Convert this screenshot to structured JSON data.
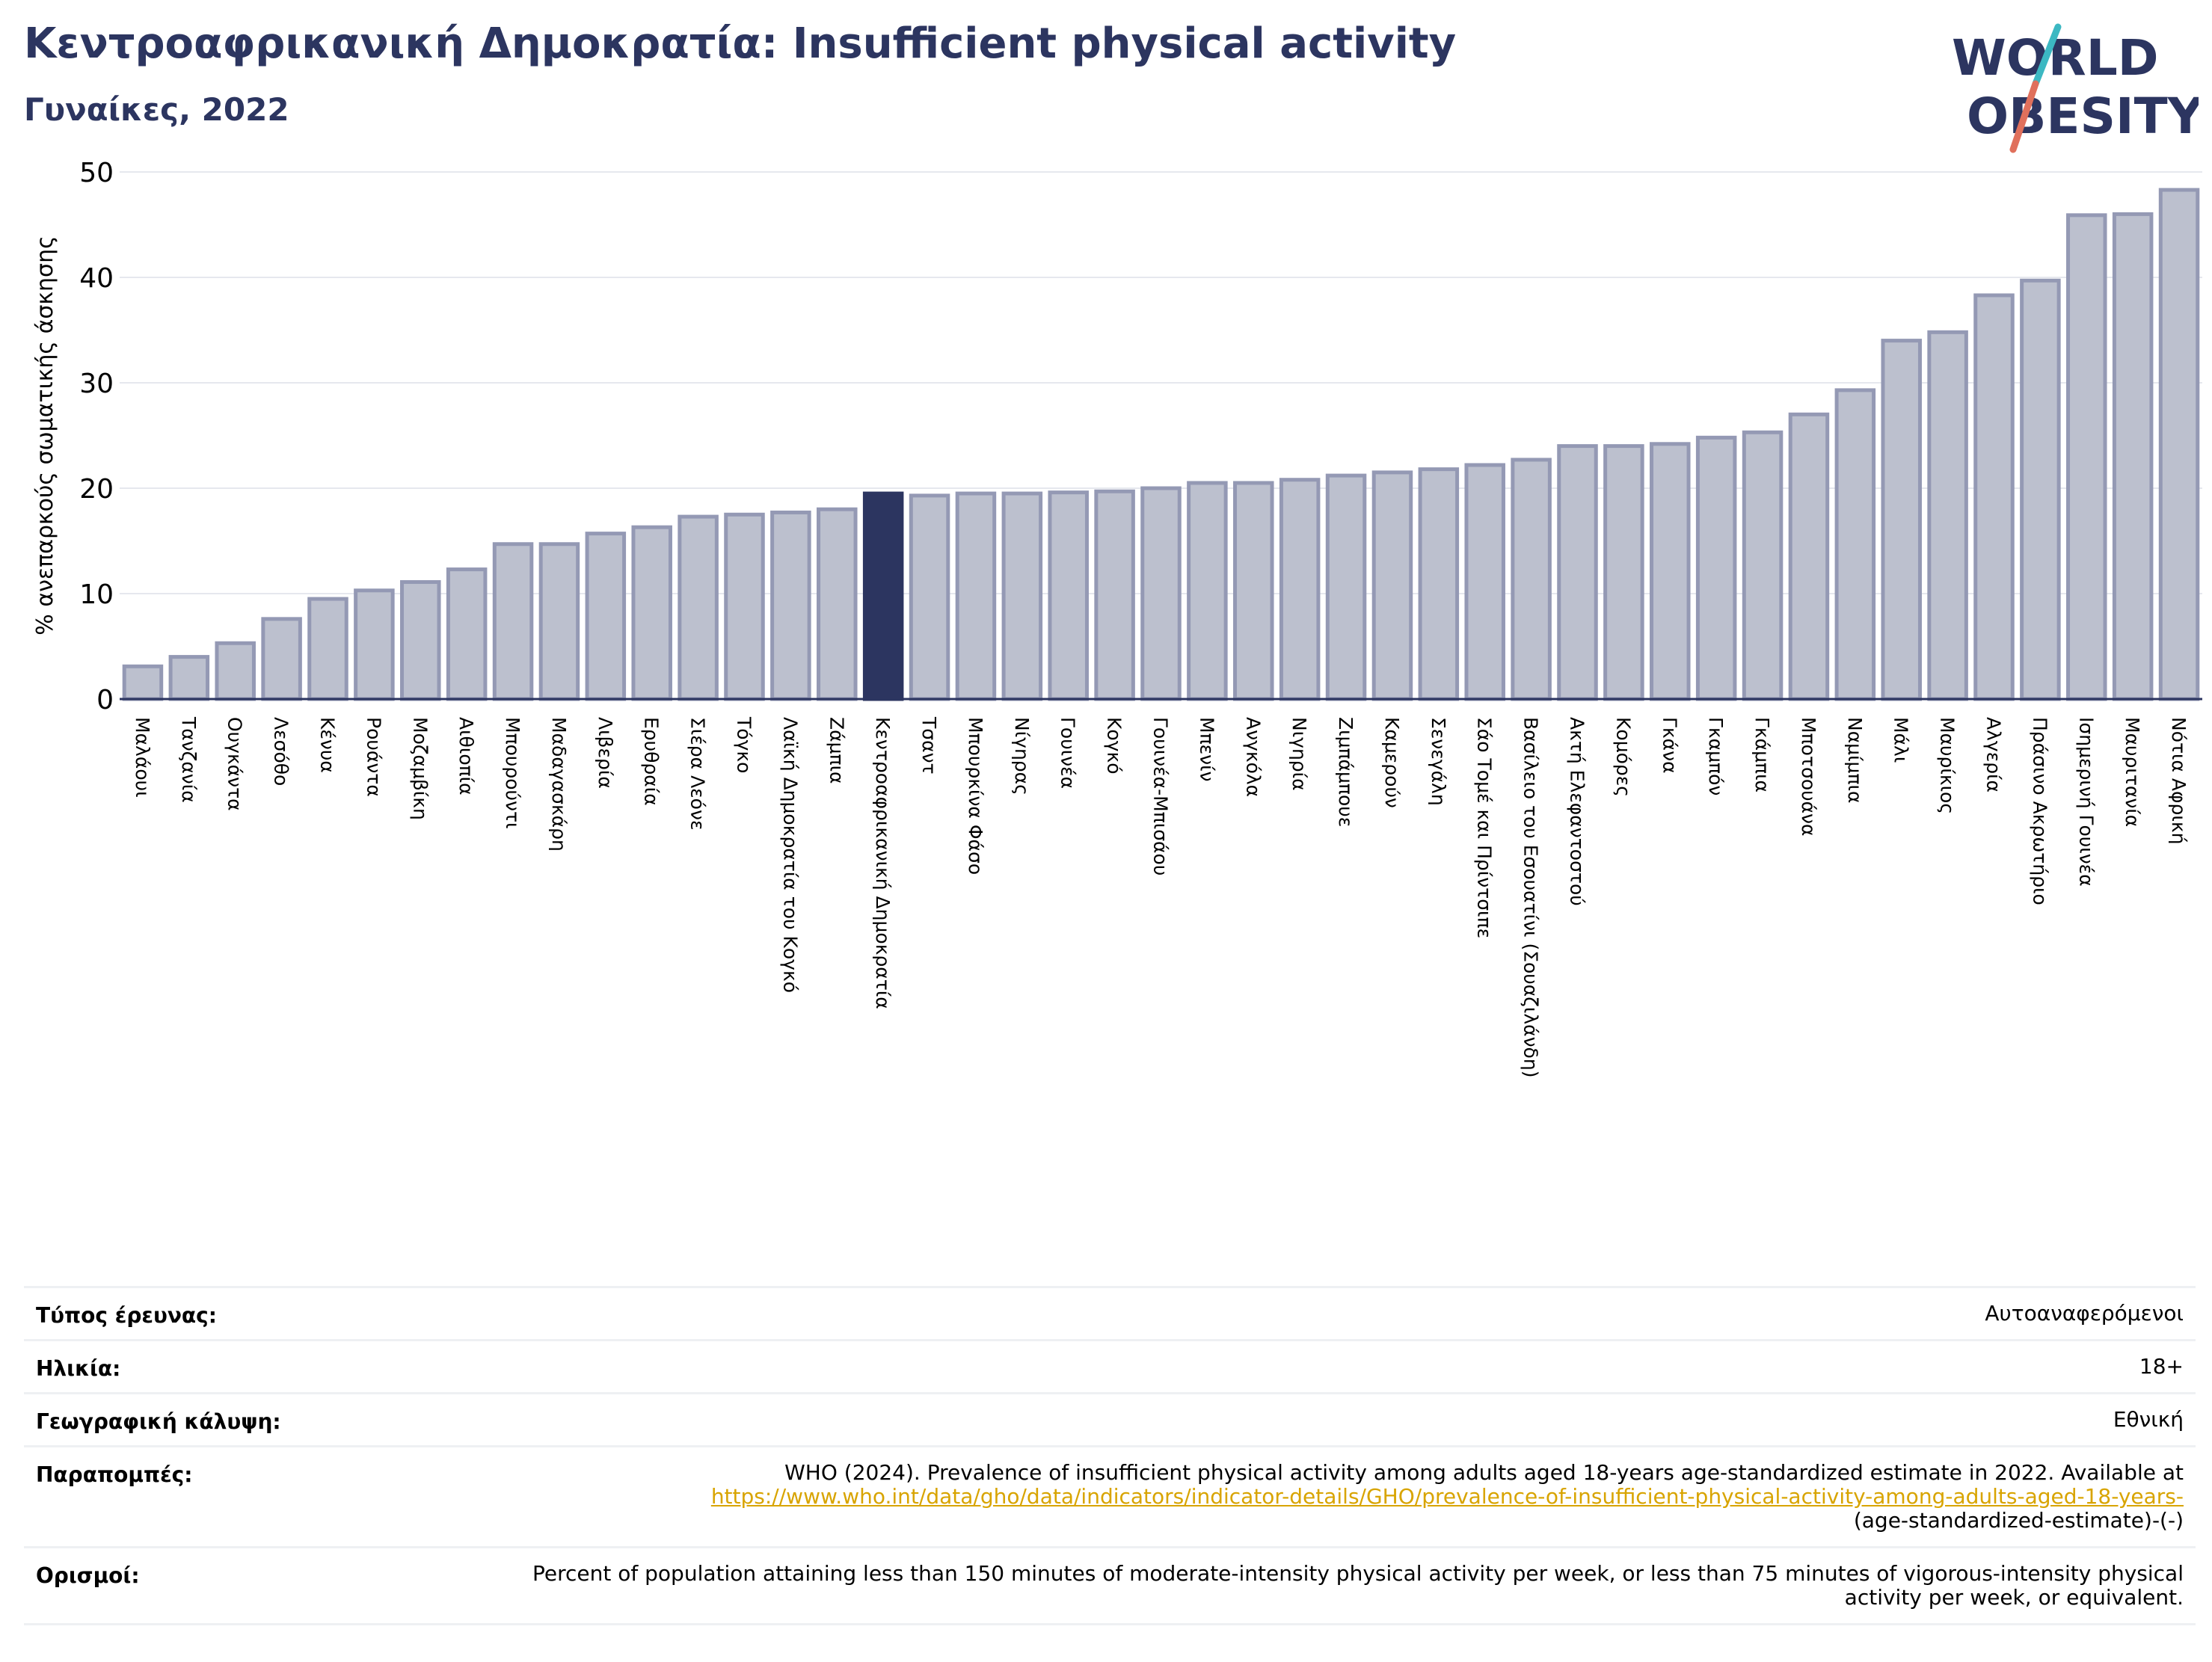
{
  "header": {
    "title": "Κεντροαφρικανική Δημοκρατία: Insufficient physical activity",
    "subtitle": "Γυναίκες, 2022"
  },
  "logo": {
    "line1": "WORLD",
    "line2": "OBESITY"
  },
  "chart_data": {
    "type": "bar",
    "ylabel": "% ανεπαρκούς σωματικής άσκησης",
    "ylim": [
      0,
      50
    ],
    "yticks": [
      0,
      10,
      20,
      30,
      40,
      50
    ],
    "grid": true,
    "highlight": "Κεντροαφρικανική Δημοκρατία",
    "colors": {
      "bar": "#bcc0ce",
      "bar_edge": "#9499b4",
      "highlight": "#2c3560"
    },
    "categories": [
      "Μαλάουι",
      "Τανζανία",
      "Ουγκάντα",
      "Λεσόθο",
      "Κένυα",
      "Ρουάντα",
      "Μοζαμβίκη",
      "Αιθιοπία",
      "Μπουρούντι",
      "Μαδαγασκάρη",
      "Λιβερία",
      "Ερυθραία",
      "Σιέρα Λεόνε",
      "Τόγκο",
      "Λαϊκή Δημοκρατία του Κογκό",
      "Ζάμπια",
      "Κεντροαφρικανική Δημοκρατία",
      "Τσαντ",
      "Μπουρκίνα Φάσο",
      "Νίγηρας",
      "Γουινέα",
      "Κογκό",
      "Γουινέα-Μπισάου",
      "Μπενίν",
      "Ανγκόλα",
      "Νιγηρία",
      "Ζιμπάμπουε",
      "Καμερούν",
      "Σενεγάλη",
      "Σάο Τομέ και Πρίντσιπε",
      "Βασίλειο του Εσουατίνι (Σουαζιλάνδη)",
      "Ακτή Ελεφαντοστού",
      "Κομόρες",
      "Γκάνα",
      "Γκαμπόν",
      "Γκάμπια",
      "Μποτσουάνα",
      "Ναμίμπια",
      "Μάλι",
      "Μαυρίκιος",
      "Αλγερία",
      "Πράσινο Ακρωτήριο",
      "Ισημερινή Γουινέα",
      "Μαυριτανία",
      "Νότια Αφρική"
    ],
    "values": [
      3.1,
      4.0,
      5.3,
      7.6,
      9.5,
      10.3,
      11.1,
      12.3,
      14.7,
      14.7,
      15.7,
      16.3,
      17.3,
      17.5,
      17.7,
      18.0,
      19.5,
      19.3,
      19.5,
      19.5,
      19.6,
      19.7,
      20.0,
      20.5,
      20.5,
      20.8,
      21.2,
      21.5,
      21.8,
      22.2,
      22.7,
      24.0,
      24.0,
      24.2,
      24.8,
      25.3,
      27.0,
      29.3,
      34.0,
      34.8,
      38.3,
      39.7,
      45.9,
      46.0,
      48.3
    ]
  },
  "meta": {
    "rows": [
      {
        "label": "Τύπος έρευνας:",
        "value": "Αυτοαναφερόμενοι"
      },
      {
        "label": "Ηλικία:",
        "value": "18+"
      },
      {
        "label": "Γεωγραφική κάλυψη:",
        "value": "Εθνική"
      },
      {
        "label": "Παραπομπές:",
        "value": "WHO (2024). Prevalence of insufficient physical activity among adults aged 18-years age-standardized estimate in 2022. Available at",
        "link": "https://www.who.int/data/gho/data/indicators/indicator-details/GHO/prevalence-of-insufficient-physical-activity-among-adults-aged-18-years-",
        "value2": "(age-standardized-estimate)-(-)"
      },
      {
        "label": "Ορισμοί:",
        "value": "Percent of population attaining less than 150 minutes of moderate-intensity physical activity per week, or less than 75 minutes of vigorous-intensity physical activity per week, or equivalent."
      }
    ]
  }
}
